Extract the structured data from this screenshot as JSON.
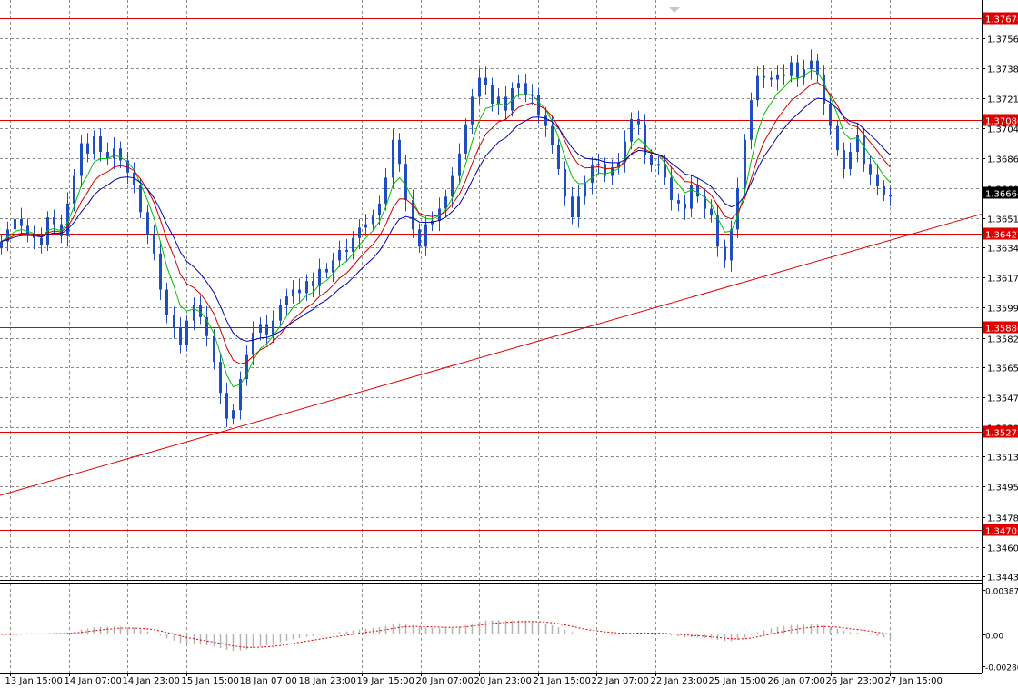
{
  "chart_data": {
    "type": "candlestick",
    "main_panel": {
      "y_tick_labels": [
        "1.37560",
        "1.37385",
        "1.37210",
        "1.37040",
        "1.36865",
        "1.36690",
        "1.36515",
        "1.36345",
        "1.36170",
        "1.35995",
        "1.35820",
        "1.35650",
        "1.35475",
        "1.35300",
        "1.35130",
        "1.34955",
        "1.34780",
        "1.34605",
        "1.34435"
      ],
      "y_tick_values": [
        1.3756,
        1.37385,
        1.3721,
        1.3704,
        1.36865,
        1.3669,
        1.36515,
        1.36345,
        1.3617,
        1.35995,
        1.3582,
        1.3565,
        1.35475,
        1.353,
        1.3513,
        1.34955,
        1.3478,
        1.34605,
        1.34435
      ],
      "ylim": [
        1.34435,
        1.3774
      ],
      "current_price": "1.36664",
      "current_price_value": 1.36664,
      "horizontal_levels": [
        {
          "label": "1.37678",
          "value": 1.37678
        },
        {
          "label": "1.37086",
          "value": 1.37086
        },
        {
          "label": "1.36427",
          "value": 1.36427
        },
        {
          "label": "1.35880",
          "value": 1.3588
        },
        {
          "label": "1.35272",
          "value": 1.35272
        },
        {
          "label": "1.34703",
          "value": 1.34703
        }
      ],
      "trendline": {
        "start": [
          0,
          1.34905
        ],
        "end": [
          1080,
          1.36539
        ]
      },
      "candles": [
        1.3638,
        1.3645,
        1.3651,
        1.3647,
        1.3642,
        1.364,
        1.3636,
        1.3652,
        1.3648,
        1.3641,
        1.366,
        1.3676,
        1.3695,
        1.3689,
        1.3699,
        1.369,
        1.3686,
        1.3692,
        1.3685,
        1.3678,
        1.3671,
        1.3655,
        1.3642,
        1.3631,
        1.361,
        1.3595,
        1.3588,
        1.3578,
        1.3592,
        1.3601,
        1.3594,
        1.3583,
        1.3568,
        1.355,
        1.3535,
        1.354,
        1.3558,
        1.3572,
        1.3585,
        1.359,
        1.3584,
        1.3592,
        1.3601,
        1.3606,
        1.361,
        1.3608,
        1.3615,
        1.3612,
        1.3622,
        1.362,
        1.3627,
        1.3633,
        1.3632,
        1.364,
        1.3646,
        1.3648,
        1.3653,
        1.366,
        1.3675,
        1.3697,
        1.3683,
        1.3662,
        1.3645,
        1.3635,
        1.3648,
        1.365,
        1.3657,
        1.3664,
        1.3676,
        1.3689,
        1.3706,
        1.3722,
        1.3733,
        1.3729,
        1.3718,
        1.3722,
        1.3714,
        1.3727,
        1.373,
        1.3723,
        1.3723,
        1.3711,
        1.3705,
        1.3694,
        1.368,
        1.3664,
        1.3652,
        1.3664,
        1.3672,
        1.3682,
        1.3683,
        1.3676,
        1.3681,
        1.3684,
        1.3696,
        1.3709,
        1.3706,
        1.3688,
        1.3682,
        1.3683,
        1.3675,
        1.3662,
        1.366,
        1.3657,
        1.3671,
        1.3664,
        1.3657,
        1.3653,
        1.3635,
        1.3627,
        1.3645,
        1.3669,
        1.3697,
        1.372,
        1.3734,
        1.3733,
        1.3732,
        1.3735,
        1.3734,
        1.3742,
        1.3733,
        1.3738,
        1.3743,
        1.3735,
        1.3718,
        1.3705,
        1.3691,
        1.368,
        1.369,
        1.37,
        1.3683,
        1.3677,
        1.367,
        1.3665,
        1.3664
      ]
    },
    "indicators": {
      "moving_averages": [
        {
          "color": "#00c000",
          "period": 5
        },
        {
          "color": "#d00000",
          "period": 9
        },
        {
          "color": "#0000b0",
          "period": 14
        }
      ]
    },
    "lower_panel": {
      "y_tick_labels": [
        "0.003871",
        "0.00",
        "-0.002801"
      ],
      "y_tick_values": [
        0.003871,
        0,
        -0.002801
      ],
      "ylim": [
        -0.002801,
        0.003871
      ],
      "histogram_color": "#b4b4b4",
      "signal_color": "#e00000"
    },
    "x_tick_labels": [
      "13 Jan 15:00",
      "14 Jan 07:00",
      "14 Jan 23:00",
      "15 Jan 15:00",
      "18 Jan 07:00",
      "18 Jan 23:00",
      "19 Jan 15:00",
      "20 Jan 07:00",
      "20 Jan 23:00",
      "21 Jan 15:00",
      "22 Jan 07:00",
      "22 Jan 23:00",
      "25 Jan 15:00",
      "26 Jan 07:00",
      "26 Jan 23:00",
      "27 Jan 15:00"
    ],
    "grid": true,
    "colors": {
      "candle": "#1f4fbf",
      "level_line": "#e00000",
      "level_label_bg": "#e00000",
      "current_label_bg": "#000000",
      "grid": "#8c8c8c"
    }
  }
}
